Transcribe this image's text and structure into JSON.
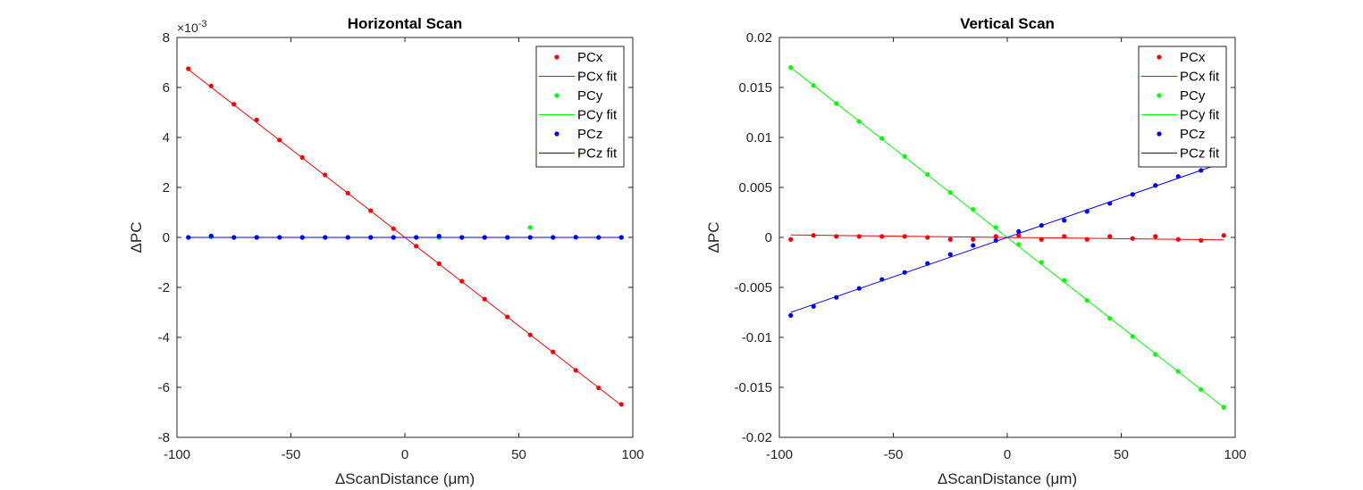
{
  "chart_data": [
    {
      "type": "scatter",
      "title": "Horizontal Scan",
      "xlabel": "ΔScanDistance (μm)",
      "ylabel": "ΔPC",
      "exponent_label": "×10",
      "exponent_power": "-3",
      "xlim": [
        -100,
        100
      ],
      "ylim": [
        -0.008,
        0.008
      ],
      "xticks": [
        -100,
        -50,
        0,
        50,
        100
      ],
      "xtick_labels": [
        "-100",
        "-50",
        "0",
        "50",
        "100"
      ],
      "yticks": [
        -0.008,
        -0.006,
        -0.004,
        -0.002,
        0,
        0.002,
        0.004,
        0.006,
        0.008
      ],
      "ytick_labels": [
        "-8",
        "-6",
        "-4",
        "-2",
        "0",
        "2",
        "4",
        "6",
        "8"
      ],
      "grid": false,
      "legend_position": "top-right",
      "x": [
        -95,
        -85,
        -75,
        -65,
        -55,
        -45,
        -35,
        -25,
        -15,
        -5,
        5,
        15,
        25,
        35,
        45,
        55,
        65,
        75,
        85,
        95
      ],
      "series": [
        {
          "name": "PCx",
          "kind": "points",
          "color": "#ff0000",
          "values": [
            0.00675,
            0.00606,
            0.00533,
            0.0047,
            0.0039,
            0.0032,
            0.0025,
            0.00177,
            0.00107,
            0.00035,
            -0.00035,
            -0.00105,
            -0.00175,
            -0.00247,
            -0.00318,
            -0.0039,
            -0.00458,
            -0.00532,
            -0.00602,
            -0.00668
          ]
        },
        {
          "name": "PCx fit",
          "kind": "line",
          "color": "#ff0000",
          "x": [
            -95,
            95
          ],
          "values": [
            0.00672,
            -0.00672
          ]
        },
        {
          "name": "PCy",
          "kind": "points",
          "color": "#00ff00",
          "values": [
            0.0,
            1e-05,
            0.0,
            0.0,
            0.0,
            0.0,
            0.0,
            0.0,
            0.0,
            0.0,
            0.0,
            -1e-05,
            0.0,
            0.0,
            0.0,
            0.0004,
            0.0,
            0.0,
            0.0,
            0.0
          ]
        },
        {
          "name": "PCy fit",
          "kind": "line",
          "color": "#00ff00",
          "x": [
            -95,
            95
          ],
          "values": [
            0.0,
            0.0
          ]
        },
        {
          "name": "PCz",
          "kind": "points",
          "color": "#0000ff",
          "values": [
            0.0,
            6e-05,
            0.0,
            0.0,
            0.0,
            0.0,
            0.0,
            0.0,
            0.0,
            0.0,
            0.0,
            5e-05,
            0.0,
            0.0,
            0.0,
            0.0,
            0.0,
            1e-05,
            0.0,
            0.0
          ]
        },
        {
          "name": "PCz fit",
          "kind": "line",
          "color": "#0000ff",
          "x": [
            -95,
            95
          ],
          "values": [
            0.0,
            0.0
          ]
        }
      ]
    },
    {
      "type": "scatter",
      "title": "Vertical Scan",
      "xlabel": "ΔScanDistance (μm)",
      "ylabel": "ΔPC",
      "exponent_label": "",
      "exponent_power": "",
      "xlim": [
        -100,
        100
      ],
      "ylim": [
        -0.02,
        0.02
      ],
      "xticks": [
        -100,
        -50,
        0,
        50,
        100
      ],
      "xtick_labels": [
        "-100",
        "-50",
        "0",
        "50",
        "100"
      ],
      "yticks": [
        -0.02,
        -0.015,
        -0.01,
        -0.005,
        0,
        0.005,
        0.01,
        0.015,
        0.02
      ],
      "ytick_labels": [
        "-0.02",
        "-0.015",
        "-0.01",
        "-0.005",
        "0",
        "0.005",
        "0.01",
        "0.015",
        "0.02"
      ],
      "grid": false,
      "legend_position": "top-right",
      "x": [
        -95,
        -85,
        -75,
        -65,
        -55,
        -45,
        -35,
        -25,
        -15,
        -5,
        5,
        15,
        25,
        35,
        45,
        55,
        65,
        75,
        85,
        95
      ],
      "series": [
        {
          "name": "PCx",
          "kind": "points",
          "color": "#ff0000",
          "values": [
            -0.0002,
            0.0002,
            0.0001,
            0.0001,
            0.0001,
            0.0001,
            0.0,
            -0.0002,
            -0.0002,
            0.0001,
            0.0002,
            -0.0002,
            0.0001,
            -0.0002,
            0.0001,
            -0.0001,
            0.0001,
            -0.0002,
            -0.0003,
            0.0002
          ]
        },
        {
          "name": "PCx fit",
          "kind": "line",
          "color": "#ff0000",
          "x": [
            -95,
            95
          ],
          "values": [
            0.00025,
            -0.00025
          ]
        },
        {
          "name": "PCy",
          "kind": "points",
          "color": "#00ff00",
          "values": [
            0.017,
            0.0152,
            0.0134,
            0.0116,
            0.0099,
            0.0081,
            0.0063,
            0.0045,
            0.0028,
            0.001,
            -0.0007,
            -0.0025,
            -0.0043,
            -0.0063,
            -0.0081,
            -0.0099,
            -0.0117,
            -0.0134,
            -0.0152,
            -0.017
          ]
        },
        {
          "name": "PCy fit",
          "kind": "line",
          "color": "#00ff00",
          "x": [
            -95,
            95
          ],
          "values": [
            0.017,
            -0.017
          ]
        },
        {
          "name": "PCz",
          "kind": "points",
          "color": "#0000ff",
          "values": [
            -0.0078,
            -0.0069,
            -0.006,
            -0.0051,
            -0.0042,
            -0.0035,
            -0.0026,
            -0.0017,
            -0.0008,
            -0.0003,
            0.0006,
            0.0012,
            0.0017,
            0.0026,
            0.0034,
            0.0043,
            0.0052,
            0.0061,
            0.0067,
            0.0076
          ]
        },
        {
          "name": "PCz fit",
          "kind": "line",
          "color": "#0000ff",
          "x": [
            -95,
            95
          ],
          "values": [
            -0.0075,
            0.0075
          ]
        }
      ]
    }
  ]
}
